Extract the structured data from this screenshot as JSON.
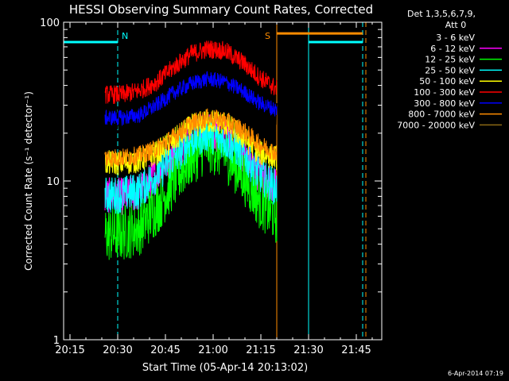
{
  "chart_data": {
    "type": "line",
    "title": "HESSI Observing Summary Count Rates, Corrected",
    "xlabel": "Start Time (05-Apr-14 20:13:02)",
    "ylabel": "Corrected Count Rate (s⁻¹ detector⁻¹)",
    "yscale": "log",
    "ylim": [
      1,
      100
    ],
    "xlim": [
      "20:13",
      "21:53"
    ],
    "xticks": [
      "20:15",
      "20:30",
      "20:45",
      "21:00",
      "21:15",
      "21:30",
      "21:45"
    ],
    "yticks": [
      "1",
      "10",
      "100"
    ],
    "grid": false,
    "legend_placement": "right",
    "legend_header": [
      "Det 1,3,5,6,7,9,",
      "Att 0"
    ],
    "timestamp": "6-Apr-2014 07:19",
    "data_start": "20:26",
    "data_end": "21:20",
    "series": [
      {
        "name": "3 - 6 keV",
        "color": "#000000",
        "y": [
          24,
          24,
          25,
          29,
          35,
          41,
          44,
          43,
          38,
          31,
          27
        ]
      },
      {
        "name": "6 - 12 keV",
        "color": "#ff00ff",
        "y": [
          8.0,
          8.0,
          8.5,
          11,
          15,
          19,
          21,
          19,
          15,
          11,
          9
        ]
      },
      {
        "name": "12 - 25 keV",
        "color": "#00ff00",
        "y": [
          4.6,
          4.7,
          5.1,
          6.8,
          10,
          14,
          17,
          15,
          11,
          7.5,
          6
        ]
      },
      {
        "name": "25 - 50 keV",
        "color": "#00ffff",
        "y": [
          8.1,
          8.2,
          8.7,
          11,
          14,
          18,
          20,
          18,
          15,
          11,
          9
        ]
      },
      {
        "name": "50 - 100 keV",
        "color": "#ffff00",
        "y": [
          13,
          13,
          13.5,
          15,
          18,
          22,
          24,
          23,
          19,
          15,
          14
        ]
      },
      {
        "name": "100 - 300 keV",
        "color": "#ff0000",
        "y": [
          35,
          35,
          37,
          42,
          52,
          63,
          68,
          66,
          56,
          45,
          38
        ]
      },
      {
        "name": "300 - 800 keV",
        "color": "#0000ff",
        "y": [
          25,
          25,
          26,
          30,
          36,
          41,
          44,
          42,
          37,
          31,
          28
        ]
      },
      {
        "name": "800 - 7000 keV",
        "color": "#ff8c00",
        "y": [
          14,
          14,
          14.5,
          16,
          19,
          23,
          25,
          24,
          21,
          17,
          15
        ]
      },
      {
        "name": "7000 - 20000 keV",
        "color": "#8b6914",
        "y": [
          null,
          null,
          null,
          null,
          null,
          null,
          null,
          null,
          null,
          null,
          null
        ]
      }
    ],
    "annotations": [
      {
        "text": "N",
        "color": "#00ffff",
        "time": "20:30"
      },
      {
        "text": "S",
        "color": "#ff8c00",
        "time": "21:20"
      }
    ],
    "flags": [
      {
        "color": "#00ffff",
        "start": "20:13",
        "end": "20:30",
        "y": 75
      },
      {
        "color": "#ff8c00",
        "start": "21:20",
        "end": "21:47",
        "y": 85
      },
      {
        "color": "#00ffff",
        "start": "21:30",
        "end": "21:47",
        "y": 75
      }
    ],
    "vlines": [
      {
        "time": "20:13",
        "color": "#00ffff",
        "style": "solid"
      },
      {
        "time": "20:30",
        "color": "#00ffff",
        "style": "dashed"
      },
      {
        "time": "21:20",
        "color": "#ff8c00",
        "style": "solid"
      },
      {
        "time": "21:30",
        "color": "#00ffff",
        "style": "solid"
      },
      {
        "time": "21:47",
        "color": "#00ffff",
        "style": "dashed"
      },
      {
        "time": "21:48",
        "color": "#ff8c00",
        "style": "dashed"
      }
    ]
  }
}
